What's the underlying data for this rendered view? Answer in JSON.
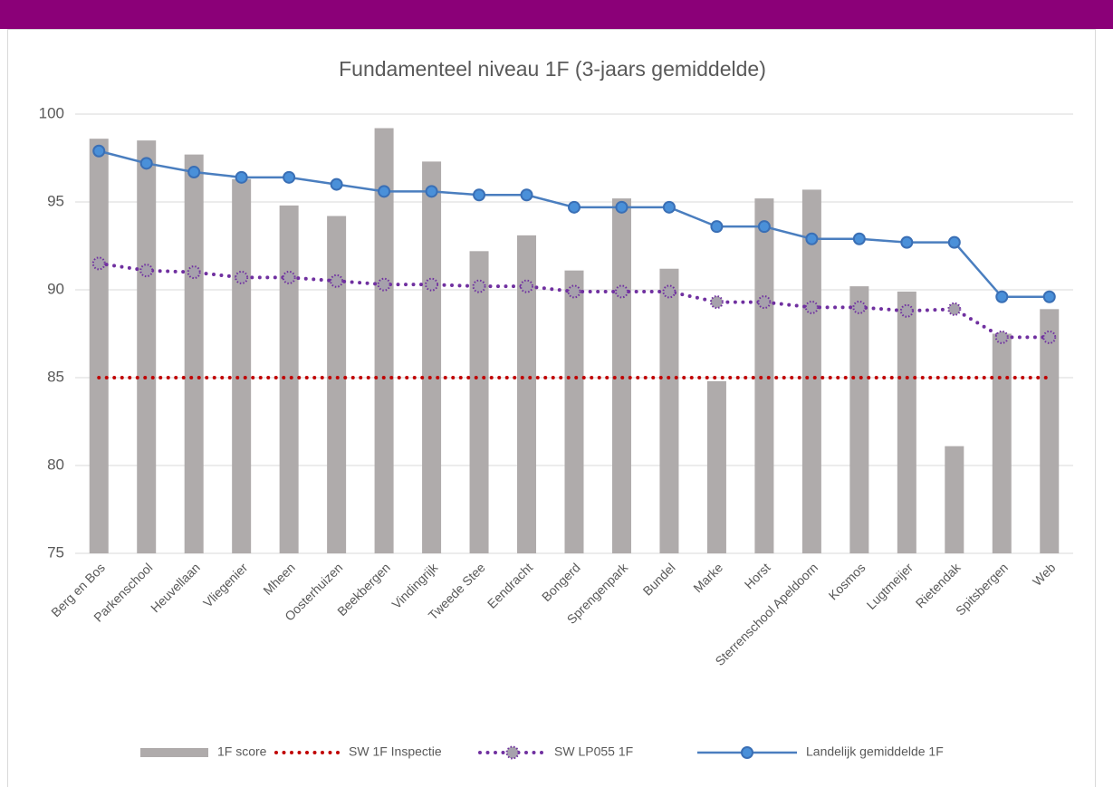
{
  "chart_data": {
    "type": "bar",
    "title": "Fundamenteel niveau 1F (3-jaars gemiddelde)",
    "categories": [
      "Berg en Bos",
      "Parkenschool",
      "Heuvellaan",
      "Vliegenier",
      "Mheen",
      "Oosterhuizen",
      "Beekbergen",
      "Vindingrijk",
      "Tweede Stee",
      "Eendracht",
      "Bongerd",
      "Sprengenpark",
      "Bundel",
      "Marke",
      "Horst",
      "Sterrenschool Apeldoorn",
      "Kosmos",
      "Lugtmeijer",
      "Rietendak",
      "Spitsbergen",
      "Web"
    ],
    "series": [
      {
        "name": "1F score",
        "type": "bar",
        "color": "#afabab",
        "values": [
          98.6,
          98.5,
          97.7,
          96.3,
          94.8,
          94.2,
          99.2,
          97.3,
          92.2,
          93.1,
          91.1,
          95.2,
          91.2,
          84.8,
          95.2,
          95.7,
          90.2,
          89.9,
          81.1,
          87.5,
          88.9
        ]
      },
      {
        "name": "SW 1F Inspectie",
        "type": "line",
        "color": "#c00000",
        "dotted": true,
        "marker": false,
        "values": [
          85,
          85,
          85,
          85,
          85,
          85,
          85,
          85,
          85,
          85,
          85,
          85,
          85,
          85,
          85,
          85,
          85,
          85,
          85,
          85,
          85
        ]
      },
      {
        "name": "SW LP055 1F",
        "type": "line",
        "color": "#7030a0",
        "dotted": true,
        "marker": true,
        "values": [
          91.5,
          91.1,
          91.0,
          90.7,
          90.7,
          90.5,
          90.3,
          90.3,
          90.2,
          90.2,
          89.9,
          89.9,
          89.9,
          89.3,
          89.3,
          89.0,
          89.0,
          88.8,
          88.9,
          87.3,
          87.3
        ]
      },
      {
        "name": "Landelijk gemiddelde 1F",
        "type": "line",
        "color": "#4a7ebf",
        "dotted": false,
        "marker": true,
        "values": [
          97.9,
          97.2,
          96.7,
          96.4,
          96.4,
          96.0,
          95.6,
          95.6,
          95.4,
          95.4,
          94.7,
          94.7,
          94.7,
          93.6,
          93.6,
          92.9,
          92.9,
          92.7,
          92.7,
          89.6,
          89.6
        ]
      }
    ],
    "ylim": [
      75,
      100
    ],
    "yticks": [
      75,
      80,
      85,
      90,
      95,
      100
    ],
    "grid": true,
    "legend": "bottom"
  }
}
